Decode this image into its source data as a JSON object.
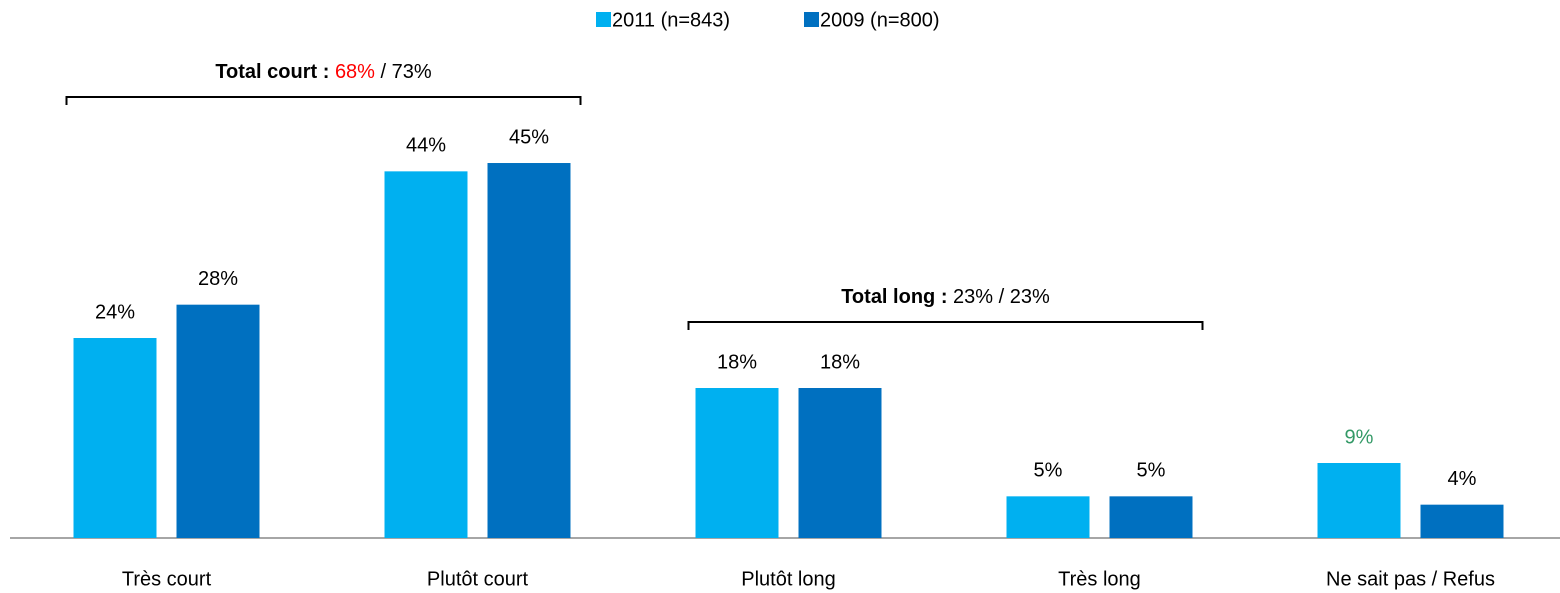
{
  "chart_data": {
    "type": "bar",
    "categories": [
      "Très court",
      "Plutôt court",
      "Plutôt long",
      "Très long",
      "Ne sait pas / Refus"
    ],
    "series": [
      {
        "name": "2011 (n=843)",
        "color": "#00b0f0",
        "values": [
          24,
          44,
          18,
          5,
          9
        ],
        "value_labels": [
          "24%",
          "44%",
          "18%",
          "5%",
          "9%"
        ],
        "value_label_colors": [
          null,
          null,
          null,
          null,
          "#339966"
        ]
      },
      {
        "name": "2009 (n=800)",
        "color": "#0070c0",
        "values": [
          28,
          45,
          18,
          5,
          4
        ],
        "value_labels": [
          "28%",
          "45%",
          "18%",
          "5%",
          "4%"
        ],
        "value_label_colors": [
          null,
          null,
          null,
          null,
          null
        ]
      }
    ],
    "legend": "top",
    "annotations": [
      {
        "label": "Total court :",
        "value_labels": [
          "68%",
          "73%"
        ],
        "separator": "/",
        "highlight_color": "#ff0000",
        "from": "Très court",
        "to": "Plutôt court"
      },
      {
        "label": "Total long :",
        "value_labels": [
          "23%",
          "23%"
        ],
        "separator": "/",
        "highlight_color": null,
        "from": "Plutôt long",
        "to": "Très long"
      }
    ]
  }
}
